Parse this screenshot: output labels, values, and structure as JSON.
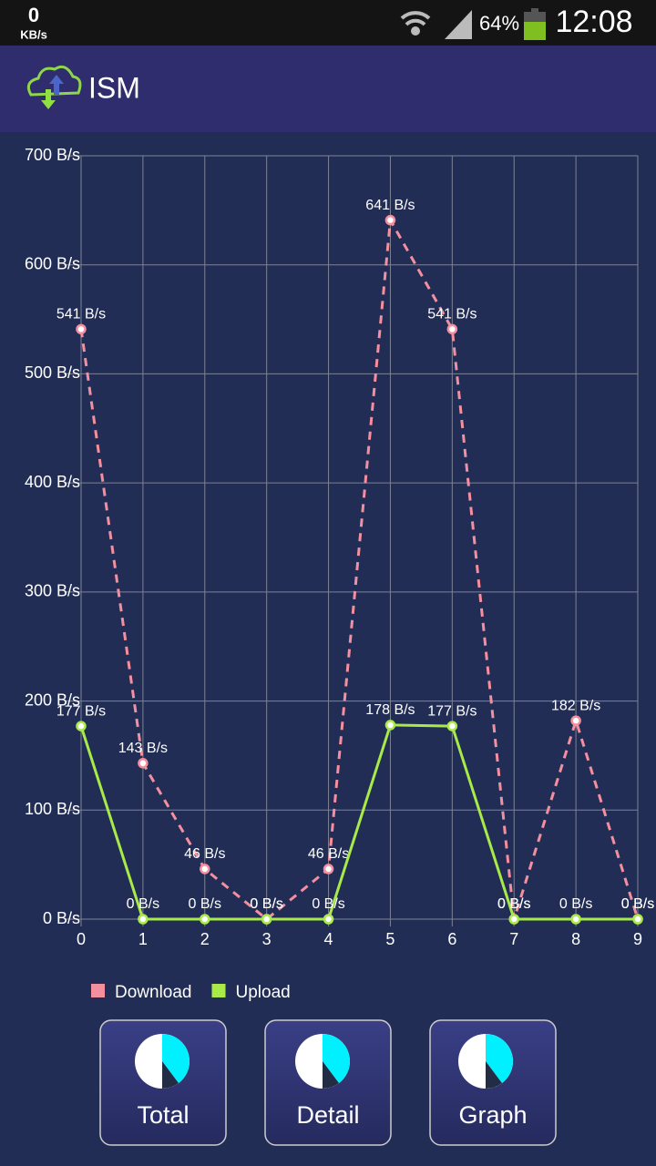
{
  "status_bar": {
    "speed": "0",
    "speed_unit": "KB/s",
    "battery": "64%",
    "time": "12:08"
  },
  "app_bar": {
    "title": "ISM"
  },
  "chart_data": {
    "type": "line",
    "x": [
      0,
      1,
      2,
      3,
      4,
      5,
      6,
      7,
      8,
      9
    ],
    "xlim": [
      0,
      9
    ],
    "xticks": [
      0,
      1,
      2,
      3,
      4,
      5,
      6,
      7,
      8,
      9
    ],
    "ylim": [
      0,
      700
    ],
    "yticks": [
      {
        "value": 0,
        "label": "0 B/s"
      },
      {
        "value": 100,
        "label": "100 B/s"
      },
      {
        "value": 200,
        "label": "200 B/s"
      },
      {
        "value": 300,
        "label": "300 B/s"
      },
      {
        "value": 400,
        "label": "400 B/s"
      },
      {
        "value": 500,
        "label": "500 B/s"
      },
      {
        "value": 600,
        "label": "600 B/s"
      },
      {
        "value": 700,
        "label": "700 B/s"
      }
    ],
    "grid": true,
    "legend": "bottom",
    "series": [
      {
        "name": "Download",
        "color": "#f48fa0",
        "dashed": true,
        "values": [
          541,
          143,
          46,
          0,
          46,
          641,
          541,
          0,
          182,
          0
        ],
        "value_labels": [
          "541 B/s",
          "143 B/s",
          "46 B/s",
          "0 B/s",
          "46 B/s",
          "641 B/s",
          "541 B/s",
          "0 B/s",
          "182 B/s",
          "0 B/s"
        ]
      },
      {
        "name": "Upload",
        "color": "#a8ea48",
        "dashed": false,
        "values": [
          177,
          0,
          0,
          0,
          0,
          178,
          177,
          0,
          0,
          0
        ],
        "value_labels": [
          "177 B/s",
          "0 B/s",
          "0 B/s",
          "0 B/s",
          "0 B/s",
          "178 B/s",
          "177 B/s",
          "0 B/s",
          "0 B/s",
          "0 B/s"
        ]
      }
    ]
  },
  "buttons": [
    {
      "label": "Total"
    },
    {
      "label": "Detail"
    },
    {
      "label": "Graph"
    }
  ]
}
